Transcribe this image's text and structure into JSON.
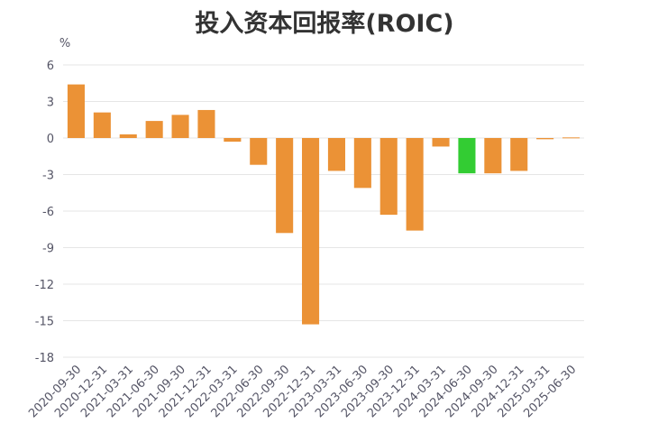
{
  "chart_data": {
    "type": "bar",
    "title": "投入资本回报率(ROIC)",
    "yunit": "%",
    "ylim": [
      -18,
      6
    ],
    "yticks": [
      6,
      3,
      0,
      -3,
      -6,
      -9,
      -12,
      -15,
      -18
    ],
    "grid": true,
    "categories": [
      "2020-09-30",
      "2020-12-31",
      "2021-03-31",
      "2021-06-30",
      "2021-09-30",
      "2021-12-31",
      "2022-03-31",
      "2022-06-30",
      "2022-09-30",
      "2022-12-31",
      "2023-03-31",
      "2023-06-30",
      "2023-09-30",
      "2023-12-31",
      "2024-03-31",
      "2024-06-30",
      "2024-09-30",
      "2024-12-31",
      "2025-03-31",
      "2025-06-30"
    ],
    "values": [
      4.4,
      2.1,
      0.3,
      1.4,
      1.9,
      2.3,
      -0.3,
      -2.2,
      -7.8,
      -15.3,
      -2.7,
      -4.1,
      -6.3,
      -7.6,
      -0.7,
      -2.9,
      -2.9,
      -2.7,
      -0.1,
      0.05
    ],
    "highlight_index": 15,
    "colors": {
      "bar": "#EB9236",
      "highlight": "#33CC33",
      "grid": "#E6E6E6",
      "axis_text": "#555566"
    }
  }
}
